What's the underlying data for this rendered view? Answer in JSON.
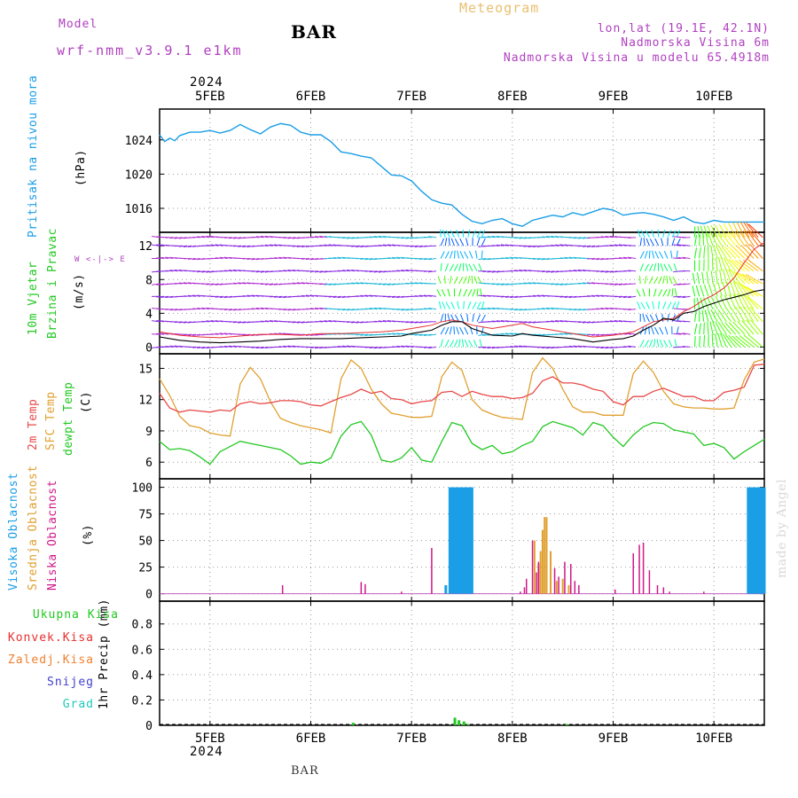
{
  "header": {
    "model_label": "Model",
    "model_name": "wrf-nmm_v3.9.1 e1km",
    "station": "BAR",
    "title": "Meteogram",
    "coords": "lon,lat (19.1E, 42.1N)",
    "elevation": "Nadmorska Visina 6m",
    "model_elevation": "Nadmorska Visina u modelu 65.4918m",
    "footer_station": "BAR",
    "watermark": "made by Angel",
    "year_top": "2024",
    "year_bottom": "2024"
  },
  "colors": {
    "pressure": "#1a9ee6",
    "wind_speed": "#000000",
    "gust": "#e83030",
    "temp_2m": "#e84848",
    "temp_sfc": "#e0a030",
    "dewpoint": "#22c822",
    "cloud_high": "#1a9ee6",
    "cloud_mid": "#e0a030",
    "cloud_low": "#d01888",
    "precip_total": "#22c822",
    "precip_conv": "#e83030",
    "precip_frz": "#f08030",
    "precip_snow": "#4040d0",
    "precip_hail": "#20c8b8",
    "purple_text": "#b040c0"
  },
  "chart_data": [
    {
      "type": "line",
      "panel": "pressure",
      "ylabel_lines": [
        "Pritisak na nivou mora",
        "(hPa)"
      ],
      "x_ticks": [
        "5FEB",
        "6FEB",
        "7FEB",
        "8FEB",
        "9FEB",
        "10FEB"
      ],
      "y_ticks": [
        1016,
        1020,
        1024
      ],
      "ylim": [
        1013.2,
        1027.6
      ],
      "grid": true,
      "series": [
        {
          "x": [
            4.5,
            4.55,
            4.6,
            4.65,
            4.7,
            4.8,
            4.9,
            5.0,
            5.1,
            5.2,
            5.3,
            5.4,
            5.5,
            5.6,
            5.7,
            5.8,
            5.9,
            6.0,
            6.1,
            6.2,
            6.3,
            6.4,
            6.5,
            6.6,
            6.7,
            6.8,
            6.9,
            7.0,
            7.1,
            7.2,
            7.3,
            7.4,
            7.5,
            7.6,
            7.7,
            7.8,
            7.9,
            8.0,
            8.1,
            8.2,
            8.3,
            8.4,
            8.5,
            8.6,
            8.7,
            8.8,
            8.9,
            9.0,
            9.1,
            9.2,
            9.3,
            9.4,
            9.5,
            9.6,
            9.7,
            9.8,
            9.9,
            10.0,
            10.1,
            10.2,
            10.3,
            10.4,
            10.5
          ],
          "y": [
            1024.6,
            1023.8,
            1024.2,
            1023.9,
            1024.5,
            1024.9,
            1024.9,
            1025.1,
            1024.8,
            1025.1,
            1025.8,
            1025.2,
            1024.7,
            1025.5,
            1025.9,
            1025.7,
            1024.9,
            1024.6,
            1024.6,
            1023.8,
            1022.6,
            1022.4,
            1022.1,
            1021.9,
            1020.9,
            1019.9,
            1019.8,
            1019.2,
            1018.0,
            1017.0,
            1016.6,
            1016.4,
            1015.3,
            1014.5,
            1014.2,
            1014.6,
            1014.8,
            1014.2,
            1013.9,
            1014.6,
            1014.9,
            1015.2,
            1015.0,
            1015.5,
            1015.2,
            1015.6,
            1016.0,
            1015.8,
            1015.2,
            1015.4,
            1015.5,
            1015.3,
            1015.0,
            1014.6,
            1015.0,
            1014.4,
            1014.2,
            1014.6,
            1014.4,
            1014.4,
            1014.4,
            1014.4,
            1014.4
          ]
        }
      ]
    },
    {
      "type": "line",
      "panel": "wind",
      "ylabel_lines": [
        "10m Vjetar",
        "Brzina i Pravac",
        "(m/s)"
      ],
      "compass": "W <-|-> E",
      "y_ticks": [
        0,
        4,
        8,
        12
      ],
      "ylim": [
        -0.8,
        13.6
      ],
      "grid": true,
      "series": [
        {
          "name": "speed",
          "x": [
            4.5,
            4.7,
            4.9,
            5.1,
            5.3,
            5.5,
            5.7,
            5.9,
            6.1,
            6.3,
            6.5,
            6.7,
            6.9,
            7.0,
            7.1,
            7.2,
            7.3,
            7.4,
            7.5,
            7.6,
            7.8,
            8.0,
            8.1,
            8.2,
            8.4,
            8.6,
            8.8,
            9.0,
            9.1,
            9.2,
            9.3,
            9.4,
            9.5,
            9.6,
            9.7,
            9.8,
            9.9,
            10.0,
            10.1,
            10.2,
            10.3,
            10.4,
            10.5
          ],
          "y": [
            1.2,
            0.8,
            0.6,
            0.5,
            0.6,
            0.7,
            0.9,
            1.0,
            1.0,
            1.0,
            1.1,
            1.2,
            1.3,
            1.6,
            1.8,
            2.0,
            2.6,
            3.0,
            3.0,
            2.2,
            1.4,
            1.3,
            1.6,
            1.4,
            1.2,
            1.0,
            0.6,
            0.9,
            1.0,
            1.3,
            2.0,
            2.6,
            3.4,
            3.2,
            4.0,
            4.2,
            4.8,
            5.2,
            5.6,
            5.9,
            6.2,
            6.6,
            6.8
          ]
        },
        {
          "name": "gust",
          "x": [
            4.5,
            4.7,
            4.9,
            5.1,
            5.3,
            5.5,
            5.7,
            5.9,
            6.1,
            6.3,
            6.5,
            6.7,
            6.9,
            7.0,
            7.1,
            7.2,
            7.3,
            7.4,
            7.5,
            7.6,
            7.8,
            8.0,
            8.1,
            8.2,
            8.4,
            8.6,
            8.8,
            9.0,
            9.1,
            9.2,
            9.3,
            9.4,
            9.5,
            9.6,
            9.7,
            9.8,
            9.9,
            10.0,
            10.1,
            10.2,
            10.3,
            10.4,
            10.5
          ],
          "y": [
            1.8,
            1.4,
            1.2,
            1.1,
            1.3,
            1.5,
            1.5,
            1.4,
            1.6,
            1.6,
            1.7,
            1.8,
            2.0,
            2.2,
            2.4,
            2.6,
            3.0,
            3.2,
            3.0,
            2.6,
            2.2,
            2.6,
            2.8,
            2.4,
            2.0,
            1.6,
            1.2,
            1.4,
            1.6,
            1.8,
            2.4,
            3.0,
            3.2,
            3.4,
            4.2,
            4.8,
            5.6,
            6.2,
            7.0,
            8.2,
            10.0,
            11.6,
            12.4
          ]
        }
      ]
    },
    {
      "type": "line",
      "panel": "temperature",
      "ylabel_lines": [
        "2m Temp",
        "SFC Temp",
        "dewpt Temp",
        "(C)"
      ],
      "y_ticks": [
        6,
        9,
        12,
        15
      ],
      "ylim": [
        4.4,
        16.4
      ],
      "grid": true,
      "series": [
        {
          "name": "2m Temp",
          "x": [
            4.5,
            4.6,
            4.7,
            4.8,
            4.9,
            5.0,
            5.1,
            5.2,
            5.3,
            5.4,
            5.5,
            5.6,
            5.7,
            5.8,
            5.9,
            6.0,
            6.1,
            6.2,
            6.3,
            6.4,
            6.5,
            6.6,
            6.7,
            6.8,
            6.9,
            7.0,
            7.1,
            7.2,
            7.3,
            7.4,
            7.5,
            7.6,
            7.7,
            7.8,
            7.9,
            8.0,
            8.1,
            8.2,
            8.3,
            8.4,
            8.5,
            8.6,
            8.7,
            8.8,
            8.9,
            9.0,
            9.1,
            9.2,
            9.3,
            9.4,
            9.5,
            9.6,
            9.7,
            9.8,
            9.9,
            10.0,
            10.1,
            10.2,
            10.3,
            10.4,
            10.5
          ],
          "y": [
            12.6,
            11.2,
            10.8,
            11.0,
            10.9,
            10.8,
            11.0,
            10.9,
            11.6,
            11.8,
            11.6,
            11.7,
            11.9,
            11.9,
            11.8,
            11.5,
            11.4,
            11.8,
            12.2,
            12.5,
            13.0,
            12.6,
            12.8,
            12.1,
            12.0,
            11.6,
            11.8,
            11.9,
            12.7,
            12.8,
            12.3,
            12.8,
            12.5,
            12.3,
            12.3,
            12.1,
            12.2,
            12.6,
            13.8,
            14.2,
            13.6,
            13.6,
            13.4,
            13.0,
            12.8,
            11.8,
            11.5,
            12.3,
            12.3,
            12.8,
            13.1,
            12.7,
            12.3,
            12.3,
            11.9,
            11.9,
            12.7,
            12.9,
            13.2,
            15.3,
            15.4
          ]
        },
        {
          "name": "SFC Temp",
          "x": [
            4.5,
            4.6,
            4.7,
            4.8,
            4.9,
            5.0,
            5.1,
            5.2,
            5.3,
            5.4,
            5.5,
            5.6,
            5.7,
            5.8,
            5.9,
            6.0,
            6.1,
            6.2,
            6.3,
            6.4,
            6.5,
            6.6,
            6.7,
            6.8,
            6.9,
            7.0,
            7.1,
            7.2,
            7.3,
            7.4,
            7.5,
            7.6,
            7.7,
            7.8,
            7.9,
            8.0,
            8.1,
            8.2,
            8.3,
            8.4,
            8.5,
            8.6,
            8.7,
            8.8,
            8.9,
            9.0,
            9.1,
            9.2,
            9.3,
            9.4,
            9.5,
            9.6,
            9.7,
            9.8,
            9.9,
            10.0,
            10.1,
            10.2,
            10.3,
            10.4,
            10.5
          ],
          "y": [
            14.0,
            12.4,
            10.4,
            9.5,
            9.3,
            8.8,
            8.6,
            8.5,
            13.5,
            15.1,
            14.0,
            11.8,
            10.2,
            9.8,
            9.5,
            9.3,
            9.1,
            8.8,
            14.0,
            15.8,
            15.0,
            13.0,
            11.6,
            10.7,
            10.5,
            10.3,
            10.3,
            10.4,
            14.2,
            15.6,
            14.8,
            12.0,
            11.0,
            10.6,
            10.3,
            10.2,
            10.1,
            14.6,
            16.0,
            15.0,
            13.0,
            11.3,
            10.8,
            10.8,
            10.5,
            10.5,
            10.5,
            14.5,
            15.7,
            14.6,
            12.8,
            11.6,
            11.3,
            11.2,
            11.2,
            11.1,
            11.1,
            11.2,
            13.9,
            15.6,
            15.9
          ]
        },
        {
          "name": "dewpt Temp",
          "x": [
            4.5,
            4.6,
            4.7,
            4.8,
            4.9,
            5.0,
            5.1,
            5.2,
            5.3,
            5.4,
            5.5,
            5.6,
            5.7,
            5.8,
            5.9,
            6.0,
            6.1,
            6.2,
            6.3,
            6.4,
            6.5,
            6.6,
            6.7,
            6.8,
            6.9,
            7.0,
            7.1,
            7.2,
            7.3,
            7.4,
            7.5,
            7.6,
            7.7,
            7.8,
            7.9,
            8.0,
            8.1,
            8.2,
            8.3,
            8.4,
            8.5,
            8.6,
            8.7,
            8.8,
            8.9,
            9.0,
            9.1,
            9.2,
            9.3,
            9.4,
            9.5,
            9.6,
            9.7,
            9.8,
            9.9,
            10.0,
            10.1,
            10.2,
            10.3,
            10.4,
            10.5
          ],
          "y": [
            8.0,
            7.2,
            7.3,
            7.1,
            6.5,
            5.8,
            7.0,
            7.5,
            8.0,
            7.8,
            7.6,
            7.4,
            7.2,
            6.6,
            5.8,
            6.0,
            5.9,
            6.4,
            8.5,
            9.6,
            9.9,
            8.6,
            6.2,
            6.0,
            6.4,
            7.4,
            6.2,
            6.0,
            8.0,
            9.8,
            9.5,
            7.8,
            7.2,
            7.6,
            6.8,
            7.0,
            7.6,
            8.0,
            9.4,
            9.9,
            9.6,
            9.3,
            8.6,
            9.8,
            9.5,
            8.4,
            7.5,
            8.6,
            9.4,
            9.8,
            9.7,
            9.1,
            8.9,
            8.7,
            7.6,
            7.8,
            7.4,
            6.3,
            7.0,
            7.6,
            8.2
          ]
        }
      ]
    },
    {
      "type": "bar",
      "panel": "clouds",
      "ylabel_lines": [
        "Visoka Oblacnost",
        "Srednja Oblacnost",
        "Niska Oblacnost",
        "(%)"
      ],
      "y_ticks": [
        0,
        25,
        50,
        75,
        100
      ],
      "ylim": [
        -7,
        108
      ],
      "grid": true,
      "series": [
        {
          "name": "Visoka Oblacnost",
          "x": [
            7.34,
            7.38,
            7.4,
            7.42,
            7.44,
            7.46,
            7.48,
            7.5,
            7.52,
            7.54,
            7.56,
            7.58,
            7.6,
            10.34,
            10.36,
            10.38,
            10.4,
            10.42,
            10.44,
            10.46,
            10.48,
            10.5
          ],
          "y": [
            8,
            100,
            100,
            100,
            100,
            100,
            100,
            100,
            100,
            100,
            100,
            100,
            100,
            100,
            100,
            100,
            100,
            100,
            100,
            100,
            100,
            100
          ]
        },
        {
          "name": "Srednja Oblacnost",
          "x": [
            8.22,
            8.26,
            8.28,
            8.3,
            8.32,
            8.34,
            8.38,
            8.44,
            8.5,
            8.56
          ],
          "y": [
            50,
            28,
            40,
            60,
            72,
            72,
            40,
            12,
            14,
            8
          ]
        },
        {
          "name": "Niska Oblacnost",
          "x": [
            5.72,
            6.5,
            6.54,
            6.9,
            7.2,
            8.08,
            8.12,
            8.14,
            8.2,
            8.24,
            8.26,
            8.42,
            8.46,
            8.52,
            8.58,
            8.62,
            8.66,
            9.02,
            9.2,
            9.26,
            9.3,
            9.36,
            9.44,
            9.5,
            9.56,
            9.9
          ],
          "y": [
            8,
            11,
            9,
            2,
            43,
            2,
            6,
            14,
            50,
            20,
            30,
            24,
            16,
            30,
            28,
            12,
            8,
            4,
            38,
            46,
            48,
            22,
            8,
            6,
            2,
            2
          ]
        }
      ]
    },
    {
      "type": "bar",
      "panel": "precipitation",
      "ylabel_lines": [
        "1hr Precip (mm)"
      ],
      "legend": [
        "Ukupna Kisa",
        "Konvek.Kisa",
        "Zaledj.Kisa",
        "Snijeg",
        "Grad"
      ],
      "y_ticks": [
        0,
        0.2,
        0.4,
        0.6,
        0.8
      ],
      "ylim": [
        0,
        0.98
      ],
      "grid": true,
      "series": [
        {
          "name": "Ukupna Kisa",
          "x": [
            6.42,
            7.43,
            7.47,
            7.52,
            7.56,
            8.54
          ],
          "y": [
            0.02,
            0.06,
            0.04,
            0.03,
            0.01,
            0.01
          ]
        }
      ]
    }
  ]
}
